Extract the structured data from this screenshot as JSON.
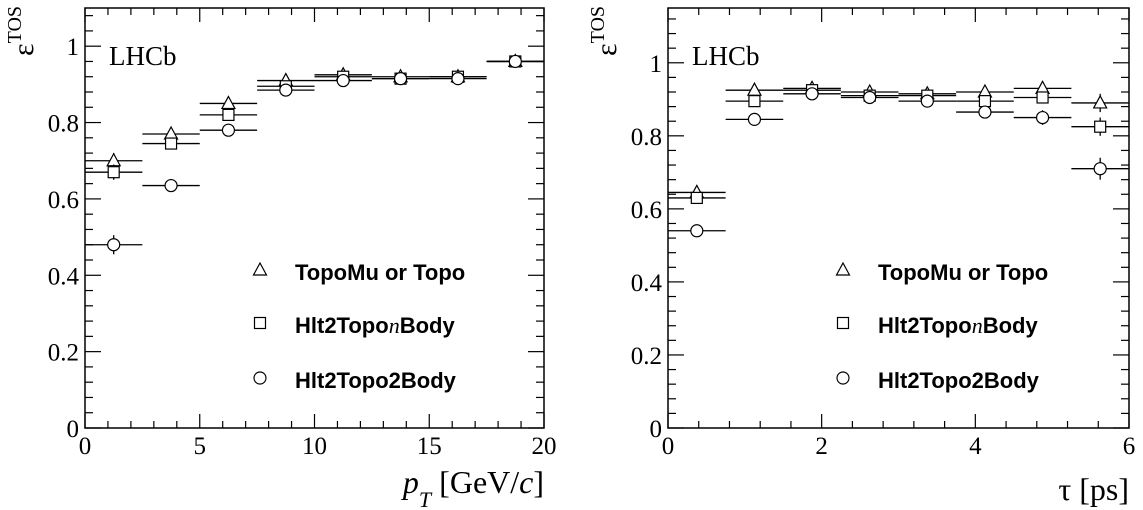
{
  "chart_data": [
    {
      "type": "scatter",
      "watermark": "LHCb",
      "ylabel": {
        "symbol": "ε",
        "superscript": "TOS"
      },
      "xlabel": {
        "p": "p",
        "sub": "T",
        "rest_pre": " [GeV/",
        "c": "c",
        "rest_post": "]"
      },
      "xlim": [
        0,
        20
      ],
      "ylim": [
        0,
        1.1
      ],
      "x_ticks": [
        "0",
        "5",
        "10",
        "15",
        "20"
      ],
      "y_ticks": [
        "0",
        "0.2",
        "0.4",
        "0.6",
        "0.8",
        "1"
      ],
      "bins": [
        [
          0,
          2.5
        ],
        [
          2.5,
          5
        ],
        [
          5,
          7.5
        ],
        [
          7.5,
          10
        ],
        [
          10,
          12.5
        ],
        [
          12.5,
          15
        ],
        [
          15,
          17.5
        ],
        [
          17.5,
          20
        ]
      ],
      "x": [
        1.25,
        3.75,
        6.25,
        8.75,
        11.25,
        13.75,
        16.25,
        18.75
      ],
      "series": [
        {
          "name": "TopoMu or Topo",
          "marker": "triangle",
          "values": [
            0.7,
            0.77,
            0.85,
            0.91,
            0.925,
            0.92,
            0.92,
            0.96
          ],
          "errors": [
            0.02,
            0.012,
            0.01,
            0.008,
            0.008,
            0.008,
            0.008,
            0.008
          ]
        },
        {
          "name": "Hlt2TopoBody",
          "marker": "square",
          "values": [
            0.67,
            0.745,
            0.82,
            0.895,
            0.92,
            0.915,
            0.92,
            0.96
          ],
          "errors": [
            0.02,
            0.012,
            0.01,
            0.008,
            0.008,
            0.008,
            0.008,
            0.008
          ]
        },
        {
          "name": "Hlt2Topo2Body",
          "marker": "circle",
          "values": [
            0.48,
            0.635,
            0.78,
            0.885,
            0.91,
            0.915,
            0.915,
            0.96
          ],
          "errors": [
            0.025,
            0.012,
            0.01,
            0.008,
            0.008,
            0.008,
            0.008,
            0.008
          ]
        }
      ],
      "legend": {
        "placement": "bottom-right",
        "items": [
          {
            "marker": "triangle",
            "parts": [
              {
                "text": "TopoMu or Topo",
                "italic": false
              }
            ]
          },
          {
            "marker": "square",
            "parts": [
              {
                "text": "Hlt2Topo",
                "italic": false
              },
              {
                "text": "n",
                "italic": true
              },
              {
                "text": "Body",
                "italic": false
              }
            ]
          },
          {
            "marker": "circle",
            "parts": [
              {
                "text": "Hlt2Topo2Body",
                "italic": false
              }
            ]
          }
        ]
      }
    },
    {
      "type": "scatter",
      "watermark": "LHCb",
      "ylabel": {
        "symbol": "ε",
        "superscript": "TOS"
      },
      "xlabel": {
        "text": "τ [ps]"
      },
      "xlim": [
        0,
        6
      ],
      "ylim": [
        0,
        1.15
      ],
      "x_ticks": [
        "0",
        "2",
        "4",
        "6"
      ],
      "y_ticks": [
        "0",
        "0.2",
        "0.4",
        "0.6",
        "0.8",
        "1"
      ],
      "bins": [
        [
          0,
          0.75
        ],
        [
          0.75,
          1.5
        ],
        [
          1.5,
          2.25
        ],
        [
          2.25,
          3.0
        ],
        [
          3.0,
          3.75
        ],
        [
          3.75,
          4.5
        ],
        [
          4.5,
          5.25
        ],
        [
          5.25,
          6.0
        ]
      ],
      "x": [
        0.375,
        1.125,
        1.875,
        2.625,
        3.375,
        4.125,
        4.875,
        5.625
      ],
      "series": [
        {
          "name": "TopoMu or Topo",
          "marker": "triangle",
          "values": [
            0.645,
            0.925,
            0.93,
            0.92,
            0.915,
            0.92,
            0.93,
            0.89
          ],
          "errors": [
            0.012,
            0.01,
            0.01,
            0.01,
            0.01,
            0.012,
            0.015,
            0.025
          ]
        },
        {
          "name": "Hlt2TopoBody",
          "marker": "square",
          "values": [
            0.63,
            0.895,
            0.925,
            0.91,
            0.91,
            0.895,
            0.905,
            0.825
          ],
          "errors": [
            0.012,
            0.01,
            0.01,
            0.01,
            0.01,
            0.012,
            0.015,
            0.025
          ]
        },
        {
          "name": "Hlt2Topo2Body",
          "marker": "circle",
          "values": [
            0.54,
            0.845,
            0.915,
            0.905,
            0.895,
            0.865,
            0.85,
            0.71
          ],
          "errors": [
            0.012,
            0.01,
            0.01,
            0.01,
            0.01,
            0.012,
            0.02,
            0.03
          ]
        }
      ],
      "legend": {
        "placement": "bottom-right",
        "items": [
          {
            "marker": "triangle",
            "parts": [
              {
                "text": "TopoMu or Topo",
                "italic": false
              }
            ]
          },
          {
            "marker": "square",
            "parts": [
              {
                "text": "Hlt2Topo",
                "italic": false
              },
              {
                "text": "n",
                "italic": true
              },
              {
                "text": "Body",
                "italic": false
              }
            ]
          },
          {
            "marker": "circle",
            "parts": [
              {
                "text": "Hlt2Topo2Body",
                "italic": false
              }
            ]
          }
        ]
      }
    }
  ]
}
